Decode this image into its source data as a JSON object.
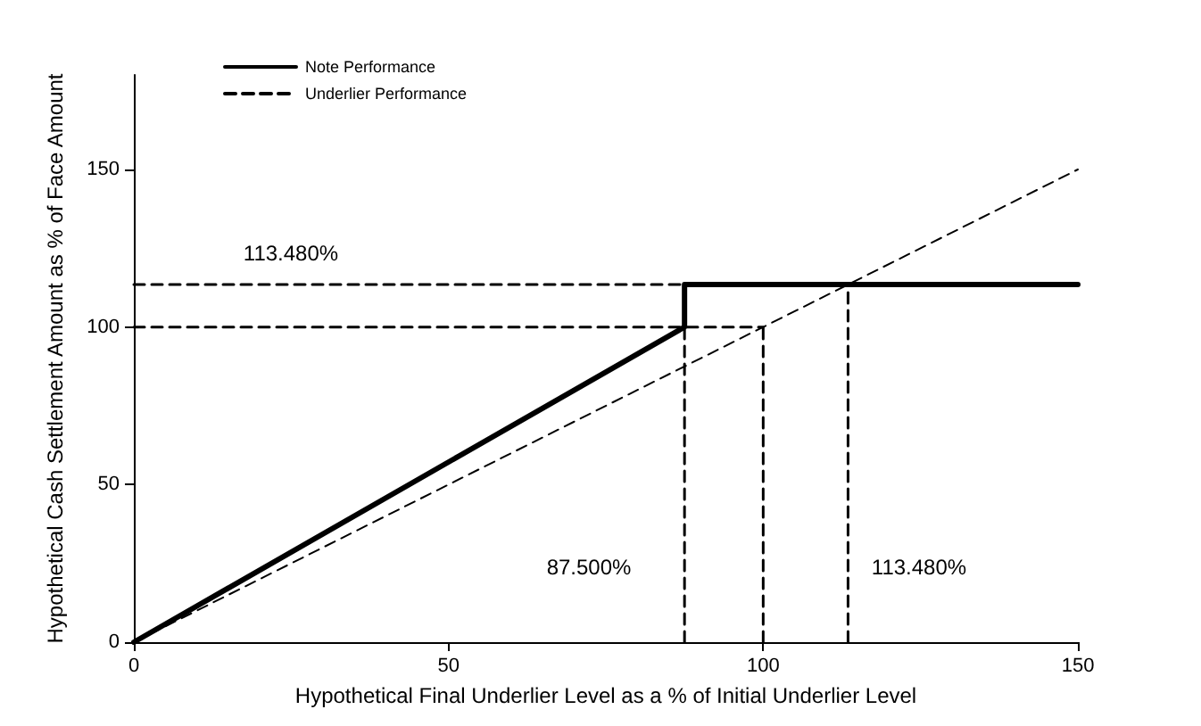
{
  "chart_data": {
    "type": "line",
    "xlabel": "Hypothetical Final Underlier Level as a % of Initial Underlier Level",
    "ylabel": "Hypothetical Cash Settlement Amount as % of Face Amount",
    "xlim": [
      0,
      150
    ],
    "xticks": [
      0,
      50,
      100,
      150
    ],
    "ylim": [
      0,
      180
    ],
    "yticks": [
      0,
      50,
      100,
      150
    ],
    "grid": false,
    "legend": "top left",
    "marker": "none",
    "series": [
      {
        "name": "Note Performance",
        "color": "#000000",
        "line_style": "solid",
        "x": [
          0,
          87.5,
          87.5,
          150
        ],
        "values": [
          0,
          100,
          113.48,
          113.48
        ]
      },
      {
        "name": "Underlier Performance",
        "color": "#000000",
        "line_style": "dashed",
        "x": [
          0,
          150
        ],
        "values": [
          0,
          150
        ]
      },
      {
        "color": "#000000",
        "line_style": "dashed",
        "x": [
          0,
          113.48
        ],
        "values": [
          113.48,
          113.48
        ]
      },
      {
        "color": "#000000",
        "line_style": "dashed",
        "x": [
          0,
          100
        ],
        "values": [
          100,
          100
        ]
      },
      {
        "color": "#000000",
        "line_style": "dashed",
        "x": [
          87.5,
          87.5
        ],
        "values": [
          0,
          100
        ]
      },
      {
        "color": "#000000",
        "line_style": "dashed",
        "x": [
          100,
          100
        ],
        "values": [
          0,
          100
        ]
      },
      {
        "color": "#000000",
        "line_style": "dashed",
        "x": [
          113.48,
          113.48
        ],
        "values": [
          0,
          113.48
        ]
      }
    ],
    "annotations": [
      "113.480%",
      "87.500%",
      "113.480%"
    ]
  }
}
